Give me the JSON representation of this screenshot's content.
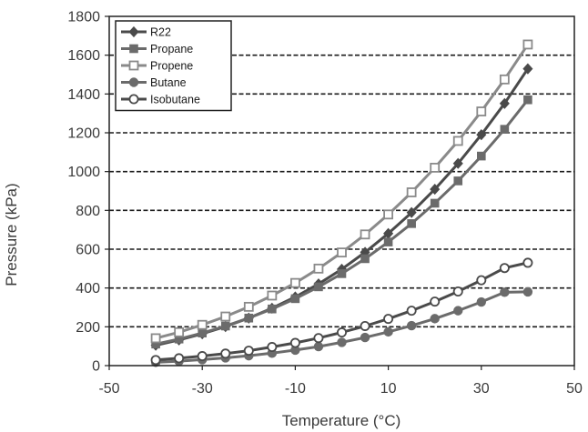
{
  "chart_data": {
    "type": "line",
    "title": "",
    "xlabel": "Temperature (°C)",
    "ylabel": "Pressure (kPa)",
    "xlim": [
      -50,
      50
    ],
    "ylim": [
      0,
      1800
    ],
    "x_ticks": [
      "-50",
      "-30",
      "-10",
      "10",
      "30",
      "50"
    ],
    "y_ticks": [
      "0",
      "200",
      "400",
      "600",
      "800",
      "1000",
      "1200",
      "1400",
      "1600",
      "1800"
    ],
    "grid": "horizontal dashed",
    "legend_position": "top-left",
    "x": [
      -40,
      -35,
      -30,
      -25,
      -20,
      -15,
      -10,
      -5,
      0,
      5,
      10,
      15,
      20,
      25,
      30,
      35,
      40
    ],
    "series": [
      {
        "name": "R22",
        "marker": "diamond",
        "color": "#4a4a4a",
        "values": [
          105,
          132,
          164,
          201,
          245,
          296,
          354,
          421,
          497,
          584,
          681,
          789,
          909,
          1042,
          1190,
          1351,
          1530
        ]
      },
      {
        "name": "Propane",
        "marker": "square",
        "color": "#6b6b6b",
        "values": [
          111,
          137,
          168,
          204,
          245,
          292,
          345,
          406,
          474,
          551,
          637,
          732,
          837,
          952,
          1080,
          1218,
          1370
        ]
      },
      {
        "name": "Propene",
        "marker": "open-square",
        "color": "#8a8a8a",
        "values": [
          141,
          172,
          210,
          253,
          303,
          361,
          426,
          500,
          583,
          676,
          779,
          893,
          1020,
          1158,
          1310,
          1475,
          1655
        ]
      },
      {
        "name": "Butane",
        "marker": "circle",
        "color": "#6b6b6b",
        "values": [
          17,
          23,
          31,
          40,
          51,
          64,
          80,
          98,
          120,
          145,
          174,
          206,
          242,
          283,
          328,
          378,
          380
        ]
      },
      {
        "name": "Isobutane",
        "marker": "open-circle",
        "color": "#4a4a4a",
        "values": [
          29,
          38,
          49,
          62,
          77,
          96,
          117,
          142,
          171,
          204,
          241,
          283,
          330,
          382,
          440,
          503,
          530
        ]
      }
    ]
  }
}
